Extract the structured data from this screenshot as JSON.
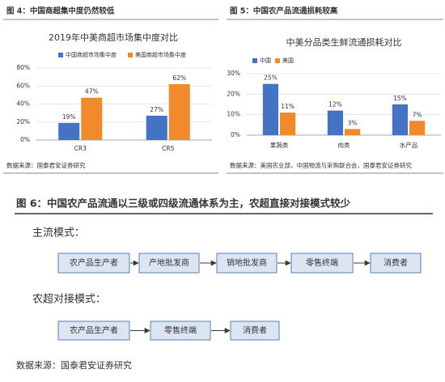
{
  "panels": [
    {
      "heading": "图 4：中国商超集中度仍然较低",
      "source": "数据来源：国泰君安证券研究"
    },
    {
      "heading": "图 5：中国农产品流通损耗较高",
      "source": "数据来源：美国农业部，中国物流与采购联合会，国泰君安证券研究"
    }
  ],
  "chart_data": [
    {
      "type": "bar",
      "title": "2019年中美商超市场集中度对比",
      "categories": [
        "CR3",
        "CR5"
      ],
      "series": [
        {
          "name": "中国商超市场集中度",
          "color": "#4472c4",
          "values": [
            19,
            27
          ],
          "value_labels": [
            "19%",
            "27%"
          ]
        },
        {
          "name": "美国商超市场集中度",
          "color": "#f08a2c",
          "values": [
            47,
            62
          ],
          "value_labels": [
            "47%",
            "62%"
          ]
        }
      ],
      "ylim": [
        0,
        80
      ],
      "yticks": [
        {
          "value": 0,
          "label": "0%"
        },
        {
          "value": 20,
          "label": "20%"
        },
        {
          "value": 40,
          "label": "40%"
        },
        {
          "value": 60,
          "label": "60%"
        },
        {
          "value": 80,
          "label": "80%"
        }
      ],
      "grid": true
    },
    {
      "type": "bar",
      "title": "中美分品类生鲜流通损耗对比",
      "categories": [
        "果蔬类",
        "肉类",
        "水产品"
      ],
      "series": [
        {
          "name": "中国",
          "color": "#4472c4",
          "values": [
            25,
            12,
            15
          ],
          "value_labels": [
            "25%",
            "12%",
            "15%"
          ]
        },
        {
          "name": "美国",
          "color": "#f08a2c",
          "values": [
            11,
            3,
            7
          ],
          "value_labels": [
            "11%",
            "3%",
            "7%"
          ]
        }
      ],
      "ylim": [
        0,
        30
      ],
      "yticks": [
        {
          "value": 0,
          "label": "0%"
        },
        {
          "value": 10,
          "label": "10%"
        },
        {
          "value": 20,
          "label": "20%"
        },
        {
          "value": 30,
          "label": "30%"
        }
      ],
      "grid": true
    }
  ],
  "diagram": {
    "heading": "图 6：中国农产品流通以三级或四级流通体系为主，农超直接对接模式较少",
    "rows": [
      {
        "label": "主流模式：",
        "nodes": [
          "农产品生产者",
          "产地批发商",
          "销地批发商",
          "零售终端",
          "消费者"
        ]
      },
      {
        "label": "农超对接模式：",
        "nodes": [
          "农产品生产者",
          "零售终端",
          "消费者"
        ]
      }
    ],
    "source": "数据来源：国泰君安证券研究"
  }
}
